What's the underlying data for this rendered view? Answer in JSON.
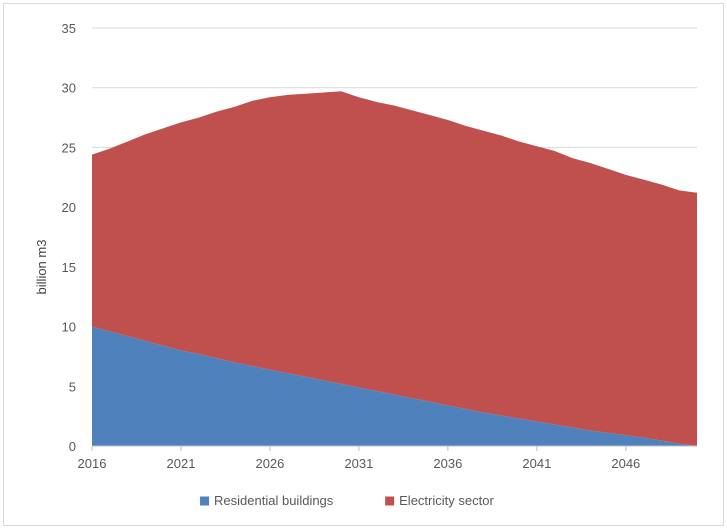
{
  "chart_data": {
    "type": "area",
    "stacked": true,
    "x": [
      2016,
      2017,
      2018,
      2019,
      2020,
      2021,
      2022,
      2023,
      2024,
      2025,
      2026,
      2027,
      2028,
      2029,
      2030,
      2031,
      2032,
      2033,
      2034,
      2035,
      2036,
      2037,
      2038,
      2039,
      2040,
      2041,
      2042,
      2043,
      2044,
      2045,
      2046,
      2047,
      2048,
      2049,
      2050
    ],
    "x_tick_labels": [
      "2016",
      "2021",
      "2026",
      "2031",
      "2036",
      "2041",
      "2046"
    ],
    "x_tick_values": [
      2016,
      2021,
      2026,
      2031,
      2036,
      2041,
      2046
    ],
    "y_tick_labels": [
      "0",
      "5",
      "10",
      "15",
      "20",
      "25",
      "30",
      "35"
    ],
    "y_tick_values": [
      0,
      5,
      10,
      15,
      20,
      25,
      30,
      35
    ],
    "ylim": [
      0,
      35
    ],
    "xlim": [
      2016,
      2050
    ],
    "ylabel": "billion m3",
    "xlabel": "",
    "title": "",
    "grid": "horizontal",
    "legend_position": "bottom",
    "series": [
      {
        "name": "Residential buildings",
        "color": "#4F81BD",
        "values": [
          10.0,
          9.6,
          9.2,
          8.8,
          8.4,
          8.0,
          7.7,
          7.35,
          7.0,
          6.7,
          6.4,
          6.1,
          5.8,
          5.5,
          5.2,
          4.9,
          4.6,
          4.3,
          4.0,
          3.7,
          3.4,
          3.1,
          2.8,
          2.55,
          2.3,
          2.05,
          1.8,
          1.55,
          1.3,
          1.1,
          0.9,
          0.7,
          0.45,
          0.2,
          0.0
        ]
      },
      {
        "name": "Electricity sector",
        "color": "#C0504D",
        "values": [
          14.4,
          15.3,
          16.3,
          17.3,
          18.2,
          19.1,
          19.8,
          20.65,
          21.4,
          22.2,
          22.8,
          23.3,
          23.7,
          24.1,
          24.5,
          24.3,
          24.2,
          24.2,
          24.1,
          24.0,
          23.9,
          23.7,
          23.6,
          23.45,
          23.2,
          23.05,
          22.9,
          22.55,
          22.4,
          22.1,
          21.8,
          21.6,
          21.45,
          21.2,
          21.2
        ]
      }
    ]
  }
}
